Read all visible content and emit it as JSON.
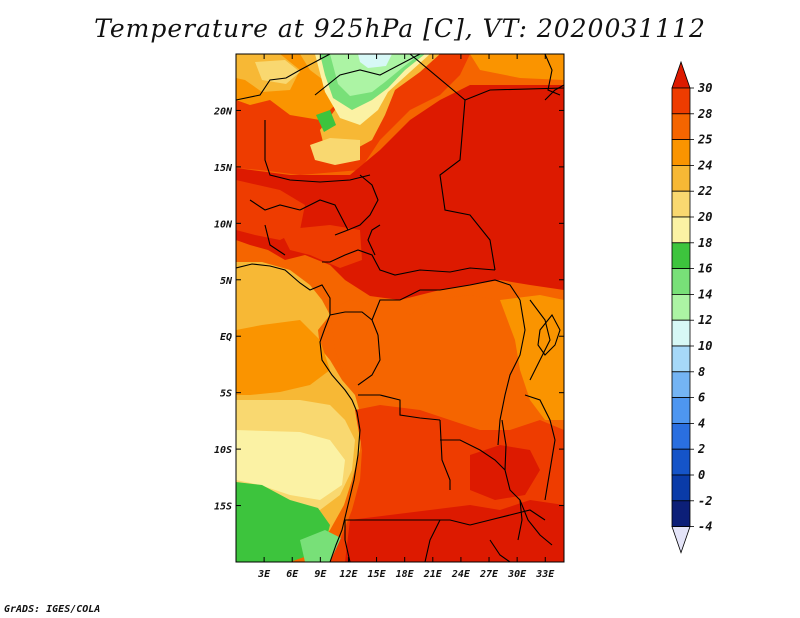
{
  "title": "Temperature at 925hPa [C], VT: 2020031112",
  "credit": "GrADS: IGES/COLA",
  "map": {
    "lon_range": [
      0,
      35
    ],
    "lat_range": [
      -20,
      25
    ],
    "lon_ticks": [
      "3E",
      "6E",
      "9E",
      "12E",
      "15E",
      "18E",
      "21E",
      "24E",
      "27E",
      "30E",
      "33E"
    ],
    "lat_ticks": [
      "20N",
      "15N",
      "10N",
      "5N",
      "EQ",
      "5S",
      "10S",
      "15S"
    ]
  },
  "colorbar": {
    "levels": [
      "30",
      "28",
      "25",
      "24",
      "22",
      "20",
      "18",
      "16",
      "14",
      "12",
      "10",
      "8",
      "6",
      "4",
      "2",
      "0",
      "-2",
      "-4"
    ],
    "colors": [
      "#dd1a00",
      "#ee3c00",
      "#f56500",
      "#fa9400",
      "#f7b835",
      "#f9d870",
      "#fbf2a4",
      "#3dc43d",
      "#78e078",
      "#acf4a4",
      "#d7f8f6",
      "#a6d8f8",
      "#74b4f4",
      "#4e96f0",
      "#2a6fe0",
      "#1554c8",
      "#0a3ba8",
      "#0c1f78",
      "#061060"
    ],
    "over_color": "#dd1a00",
    "under_color": "#e4e4f8"
  }
}
